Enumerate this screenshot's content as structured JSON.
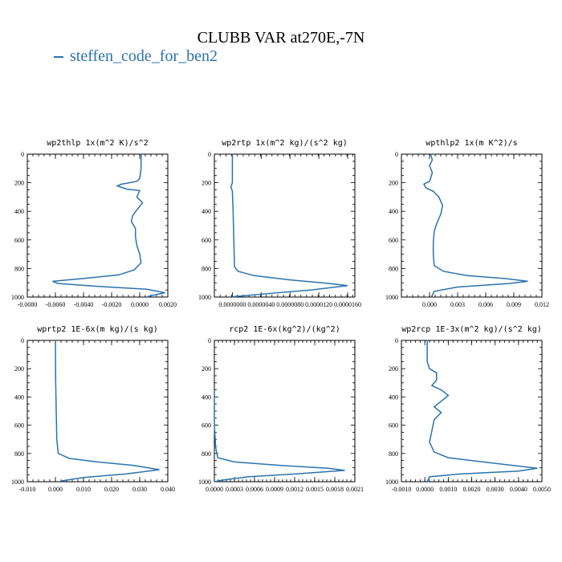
{
  "title": "CLUBB VAR at270E,-7N",
  "legend": {
    "label": "steffen_code_for_ben2",
    "color": "#2b73ad"
  },
  "chart_data": [
    {
      "type": "line",
      "title": "wp2thlp  1x(m^2 K)/s^2",
      "xlim": [
        -0.008,
        0.002
      ],
      "ylim": [
        1000,
        0
      ],
      "xticks": [
        "-0.0080",
        "-0.0060",
        "-0.0040",
        "-0.0020",
        "0.0000",
        "0.0020"
      ],
      "xtick_values": [
        -0.008,
        -0.006,
        -0.004,
        -0.002,
        0.0,
        0.002
      ],
      "yticks": [
        "0",
        "200",
        "400",
        "600",
        "800",
        "1000"
      ],
      "ytick_values": [
        0,
        200,
        400,
        600,
        800,
        1000
      ],
      "series": [
        {
          "color": "#2b73ad",
          "points": [
            [
              0.0001,
              0
            ],
            [
              0.0001,
              100
            ],
            [
              0.0,
              170
            ],
            [
              -0.0002,
              190
            ],
            [
              -0.001,
              205
            ],
            [
              -0.0013,
              210
            ],
            [
              -0.0016,
              222
            ],
            [
              -0.0009,
              245
            ],
            [
              0.0,
              255
            ],
            [
              -0.0002,
              300
            ],
            [
              0.0002,
              340
            ],
            [
              -0.0002,
              390
            ],
            [
              -0.0005,
              430
            ],
            [
              -0.0006,
              470
            ],
            [
              -0.0003,
              520
            ],
            [
              -0.0003,
              580
            ],
            [
              -0.0002,
              640
            ],
            [
              0.0,
              700
            ],
            [
              0.0001,
              760
            ],
            [
              -0.0004,
              810
            ],
            [
              -0.0015,
              845
            ],
            [
              -0.004,
              870
            ],
            [
              -0.0062,
              890
            ],
            [
              -0.0058,
              905
            ],
            [
              -0.003,
              925
            ],
            [
              0.0005,
              945
            ],
            [
              0.0018,
              970
            ],
            [
              0.0008,
              990
            ],
            [
              0.0005,
              1000
            ]
          ]
        }
      ]
    },
    {
      "type": "line",
      "title": "wp2rtp  1x(m^2 kg)/(s^2 kg)",
      "xlim": [
        -2.5e-06,
        1.7e-05
      ],
      "ylim": [
        1000,
        0
      ],
      "xticks": [
        "0.0000000",
        "0.0000040",
        "0.0000080",
        "0.0000120",
        "0.0000160"
      ],
      "xtick_values": [
        0.0,
        4e-06,
        8e-06,
        1.2e-05,
        1.6e-05
      ],
      "yticks": [
        "0",
        "200",
        "400",
        "600",
        "800",
        "1000"
      ],
      "ytick_values": [
        0,
        200,
        400,
        600,
        800,
        1000
      ],
      "series": [
        {
          "color": "#2b73ad",
          "points": [
            [
              0.0,
              0
            ],
            [
              0.0,
              200
            ],
            [
              -2e-07,
              230
            ],
            [
              0.0,
              260
            ],
            [
              1e-07,
              400
            ],
            [
              2e-07,
              600
            ],
            [
              3e-07,
              790
            ],
            [
              8e-07,
              820
            ],
            [
              3e-06,
              850
            ],
            [
              8e-06,
              880
            ],
            [
              1.35e-05,
              905
            ],
            [
              1.6e-05,
              920
            ],
            [
              1.1e-05,
              950
            ],
            [
              4e-06,
              980
            ],
            [
              0.0,
              998
            ]
          ]
        }
      ]
    },
    {
      "type": "line",
      "title": "wpthlp2  1x(m K^2)/s",
      "xlim": [
        -0.003,
        0.012
      ],
      "ylim": [
        1000,
        0
      ],
      "xticks": [
        "0.000",
        "0.003",
        "0.006",
        "0.009",
        "0.012"
      ],
      "xtick_values": [
        0.0,
        0.003,
        0.006,
        0.009,
        0.012
      ],
      "yticks": [
        "0",
        "200",
        "400",
        "600",
        "800",
        "1000"
      ],
      "ytick_values": [
        0,
        200,
        400,
        600,
        800,
        1000
      ],
      "series": [
        {
          "color": "#2b73ad",
          "points": [
            [
              0.0001,
              0
            ],
            [
              0.0003,
              40
            ],
            [
              0.0,
              80
            ],
            [
              0.0003,
              130
            ],
            [
              0.0,
              190
            ],
            [
              -0.0006,
              210
            ],
            [
              -0.0004,
              235
            ],
            [
              0.0004,
              260
            ],
            [
              0.001,
              300
            ],
            [
              0.0014,
              360
            ],
            [
              0.0012,
              420
            ],
            [
              0.0008,
              480
            ],
            [
              0.0005,
              540
            ],
            [
              0.0004,
              620
            ],
            [
              0.0004,
              700
            ],
            [
              0.0005,
              780
            ],
            [
              0.0015,
              820
            ],
            [
              0.004,
              850
            ],
            [
              0.008,
              870
            ],
            [
              0.0105,
              890
            ],
            [
              0.0085,
              905
            ],
            [
              0.003,
              930
            ],
            [
              0.0005,
              960
            ],
            [
              0.0002,
              1000
            ]
          ]
        }
      ]
    },
    {
      "type": "line",
      "title": "wprtp2  1E-6x(m kg)/(s kg)",
      "xlim": [
        -0.01,
        0.04
      ],
      "ylim": [
        1000,
        0
      ],
      "xticks": [
        "-0.010",
        "0.000",
        "0.010",
        "0.020",
        "0.030",
        "0.040"
      ],
      "xtick_values": [
        -0.01,
        0.0,
        0.01,
        0.02,
        0.03,
        0.04
      ],
      "yticks": [
        "0",
        "200",
        "400",
        "600",
        "800",
        "1000"
      ],
      "ytick_values": [
        0,
        200,
        400,
        600,
        800,
        1000
      ],
      "series": [
        {
          "color": "#2b73ad",
          "points": [
            [
              0.0,
              0
            ],
            [
              0.0001,
              300
            ],
            [
              0.0003,
              500
            ],
            [
              0.0005,
              700
            ],
            [
              0.001,
              800
            ],
            [
              0.005,
              835
            ],
            [
              0.015,
              860
            ],
            [
              0.028,
              885
            ],
            [
              0.037,
              915
            ],
            [
              0.025,
              945
            ],
            [
              0.01,
              970
            ],
            [
              0.002,
              995
            ]
          ]
        }
      ]
    },
    {
      "type": "line",
      "title": "rcp2  1E-6x(kg^2)/(kg^2)",
      "xlim": [
        0.0,
        0.0021
      ],
      "ylim": [
        1000,
        0
      ],
      "xticks": [
        "0.0000",
        "0.0003",
        "0.0006",
        "0.0009",
        "0.0012",
        "0.0015",
        "0.0018",
        "0.0021"
      ],
      "xtick_values": [
        0.0,
        0.0003,
        0.0006,
        0.0009,
        0.0012,
        0.0015,
        0.0018,
        0.0021
      ],
      "yticks": [
        "0",
        "200",
        "400",
        "600",
        "800",
        "1000"
      ],
      "ytick_values": [
        0,
        200,
        400,
        600,
        800,
        1000
      ],
      "series": [
        {
          "color": "#2b73ad",
          "points": [
            [
              0.0,
              350
            ],
            [
              0.0,
              600
            ],
            [
              2e-05,
              760
            ],
            [
              5e-05,
              830
            ],
            [
              0.0003,
              860
            ],
            [
              0.001,
              885
            ],
            [
              0.0017,
              905
            ],
            [
              0.00195,
              920
            ],
            [
              0.0012,
              945
            ],
            [
              0.0005,
              965
            ],
            [
              0.0001,
              990
            ],
            [
              0.0,
              1000
            ]
          ]
        }
      ]
    },
    {
      "type": "line",
      "title": "wp2rcp  1E-3x(m^2 kg)/(s^2 kg)",
      "xlim": [
        -0.001,
        0.005
      ],
      "ylim": [
        1000,
        0
      ],
      "xticks": [
        "-0.0010",
        "0.0000",
        "0.0010",
        "0.0020",
        "0.0030",
        "0.0040",
        "0.0050"
      ],
      "xtick_values": [
        -0.001,
        0.0,
        0.001,
        0.002,
        0.003,
        0.004,
        0.005
      ],
      "yticks": [
        "0",
        "200",
        "400",
        "600",
        "800",
        "1000"
      ],
      "ytick_values": [
        0,
        200,
        400,
        600,
        800,
        1000
      ],
      "series": [
        {
          "color": "#2b73ad",
          "points": [
            [
              0.0001,
              0
            ],
            [
              0.0001,
              150
            ],
            [
              0.0002,
              200
            ],
            [
              0.0005,
              230
            ],
            [
              0.0005,
              280
            ],
            [
              0.0003,
              320
            ],
            [
              0.0007,
              350
            ],
            [
              0.001,
              390
            ],
            [
              0.0007,
              430
            ],
            [
              0.0004,
              470
            ],
            [
              0.0007,
              510
            ],
            [
              0.0004,
              560
            ],
            [
              0.0003,
              640
            ],
            [
              0.0002,
              720
            ],
            [
              0.0004,
              790
            ],
            [
              0.001,
              830
            ],
            [
              0.003,
              870
            ],
            [
              0.0048,
              905
            ],
            [
              0.004,
              925
            ],
            [
              0.0015,
              945
            ],
            [
              0.0002,
              965
            ],
            [
              0.0001,
              1000
            ]
          ]
        }
      ]
    }
  ]
}
